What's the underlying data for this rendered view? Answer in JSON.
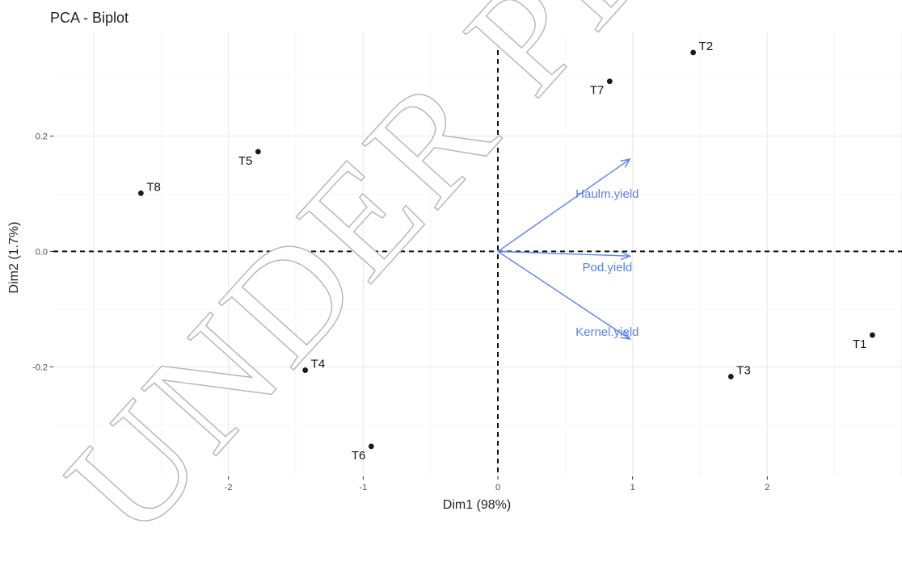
{
  "chart_data": {
    "type": "scatter",
    "title": "PCA - Biplot",
    "xlabel": "Dim1 (98%)",
    "ylabel": "Dim2 (1.7%)",
    "xlim": [
      -3.3,
      3.0
    ],
    "ylim": [
      -0.39,
      0.38
    ],
    "x_ticks": [
      -2,
      -1,
      0,
      1,
      2
    ],
    "x_tick_labels": [
      "-2",
      "-1",
      "0",
      "1",
      "2"
    ],
    "y_ticks": [
      -0.2,
      0.0,
      0.2
    ],
    "y_tick_labels": [
      "-0.2",
      "0.0",
      "0.2"
    ],
    "grid": true,
    "reference_lines": {
      "x": 0,
      "y": 0,
      "style": "dashed"
    },
    "points": [
      {
        "label": "T1",
        "x": 2.78,
        "y": -0.145
      },
      {
        "label": "T2",
        "x": 1.45,
        "y": 0.345
      },
      {
        "label": "T3",
        "x": 1.73,
        "y": -0.217
      },
      {
        "label": "T4",
        "x": -1.43,
        "y": -0.206
      },
      {
        "label": "T5",
        "x": -1.78,
        "y": 0.173
      },
      {
        "label": "T6",
        "x": -0.94,
        "y": -0.338
      },
      {
        "label": "T7",
        "x": 0.83,
        "y": 0.295
      },
      {
        "label": "T8",
        "x": -2.65,
        "y": 0.101
      }
    ],
    "point_color": "#1a1a1a",
    "vectors": [
      {
        "label": "Haulm.yield",
        "x": 0.98,
        "y": 0.16
      },
      {
        "label": "Pod.yield",
        "x": 0.98,
        "y": -0.008
      },
      {
        "label": "Kernel.yield",
        "x": 0.98,
        "y": -0.152
      }
    ],
    "vector_color": "#5b7ff0"
  },
  "watermark": "UNDER PEER REVIEW"
}
